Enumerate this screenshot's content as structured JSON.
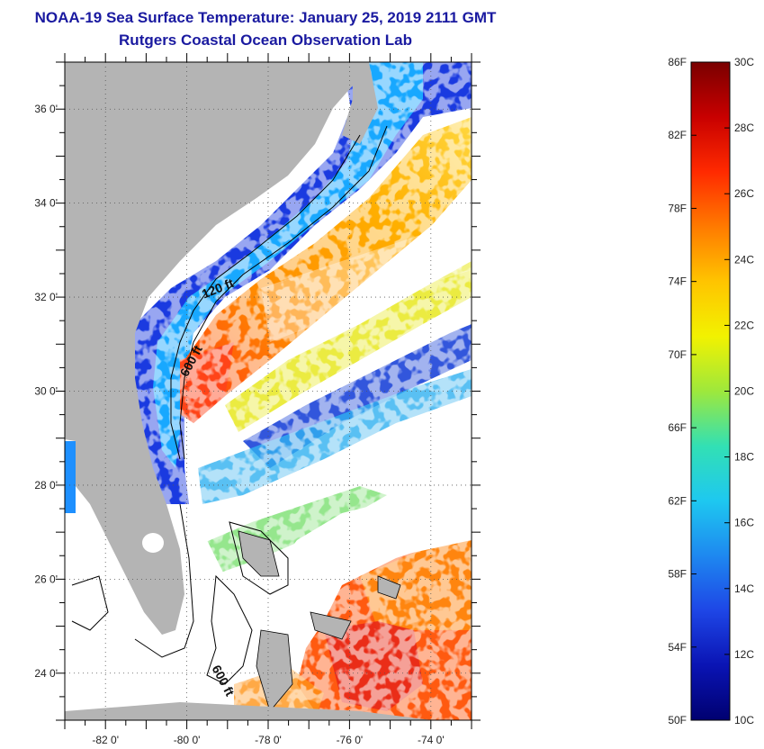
{
  "header": {
    "title": "NOAA-19 Sea Surface Temperature:  January 25, 2019 2111 GMT",
    "subtitle": "Rutgers Coastal Ocean Observation Lab"
  },
  "map": {
    "lat_range": [
      23,
      37
    ],
    "lon_range": [
      -83,
      -73
    ],
    "lat_ticks": [
      {
        "value": 24,
        "label": "24 0'"
      },
      {
        "value": 26,
        "label": "26 0'"
      },
      {
        "value": 28,
        "label": "28 0'"
      },
      {
        "value": 30,
        "label": "30 0'"
      },
      {
        "value": 32,
        "label": "32 0'"
      },
      {
        "value": 34,
        "label": "34 0'"
      },
      {
        "value": 36,
        "label": "36 0'"
      }
    ],
    "lon_ticks": [
      {
        "value": -82,
        "label": "-82 0'"
      },
      {
        "value": -80,
        "label": "-80 0'"
      },
      {
        "value": -78,
        "label": "-78 0'"
      },
      {
        "value": -76,
        "label": "-76 0'"
      },
      {
        "value": -74,
        "label": "-74 0'"
      }
    ],
    "contour_labels": [
      {
        "text": "120 ft",
        "lon": -79.2,
        "lat": 32.1
      },
      {
        "text": "600 ft",
        "lon": -79.8,
        "lat": 30.6
      },
      {
        "text": "600 ft",
        "lon": -79.2,
        "lat": 23.8
      }
    ],
    "colors": {
      "land": "#b4b4b4",
      "cloud": "#ffffff",
      "frame": "#000000"
    }
  },
  "colorbar": {
    "fahrenheit": [
      "86F",
      "82F",
      "78F",
      "74F",
      "70F",
      "66F",
      "62F",
      "58F",
      "54F",
      "50F"
    ],
    "celsius": [
      "30C",
      "28C",
      "26C",
      "24C",
      "22C",
      "20C",
      "18C",
      "16C",
      "14C",
      "12C",
      "10C"
    ],
    "range_c": [
      10,
      30
    ],
    "colors_top_to_bottom": [
      "#7a0000",
      "#c80000",
      "#ff2a00",
      "#ff7a00",
      "#ffc400",
      "#f2f200",
      "#9ee83c",
      "#32e0b4",
      "#1ec8f0",
      "#1e88f0",
      "#1e46e6",
      "#0a14b4",
      "#000070"
    ]
  }
}
